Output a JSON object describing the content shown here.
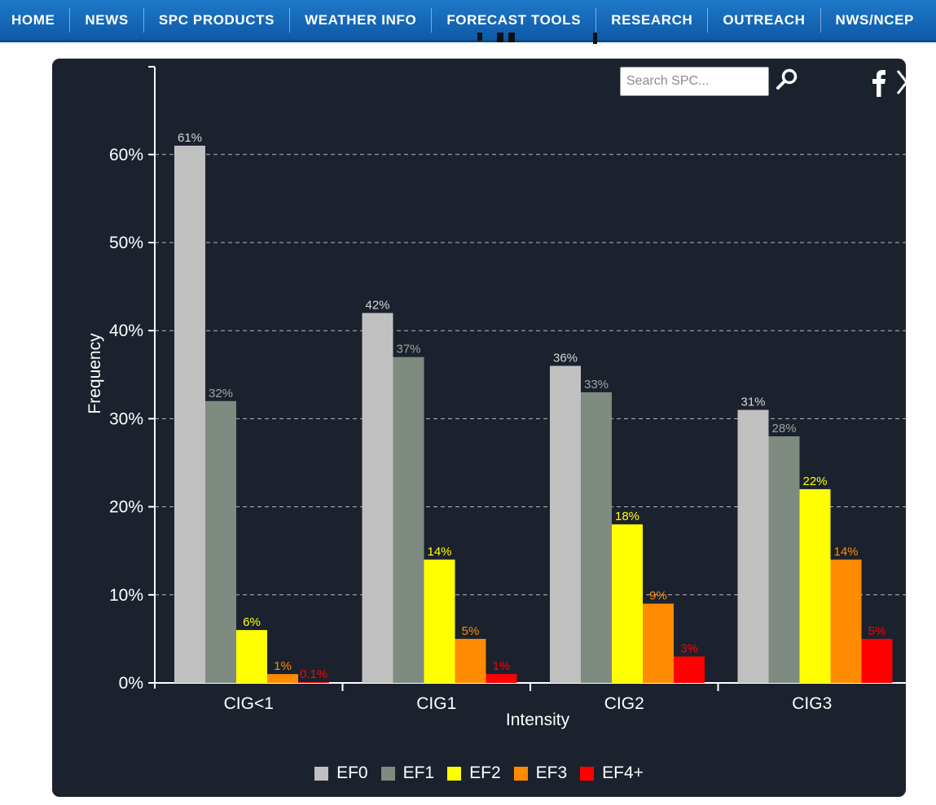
{
  "nav": {
    "items": [
      "HOME",
      "NEWS",
      "SPC PRODUCTS",
      "WEATHER INFO",
      "FORECAST TOOLS",
      "RESEARCH",
      "OUTREACH",
      "NWS/NCEP"
    ]
  },
  "search": {
    "placeholder": "Search SPC..."
  },
  "icons": {
    "search": "search-icon",
    "facebook": "facebook-icon",
    "x": "x-icon"
  },
  "colors": {
    "nav_bg": "#1565b8",
    "panel_bg": "#1b222e",
    "EF0": "#c0c0c0",
    "EF1": "#7f8a80",
    "EF2": "#ffff00",
    "EF3": "#ff8c00",
    "EF4+": "#ff0000"
  },
  "chart_data": {
    "type": "bar",
    "title": "",
    "xlabel": "Intensity",
    "ylabel": "Frequency",
    "ylim": [
      0,
      70
    ],
    "yticks": [
      0,
      10,
      20,
      30,
      40,
      50,
      60
    ],
    "ytick_labels": [
      "0%",
      "10%",
      "20%",
      "30%",
      "40%",
      "50%",
      "60%"
    ],
    "grid": true,
    "legend_position": "bottom-center",
    "categories": [
      "CIG<1",
      "CIG1",
      "CIG2",
      "CIG3"
    ],
    "series": [
      {
        "name": "EF0",
        "values": [
          61,
          42,
          36,
          31
        ],
        "labels": [
          "61%",
          "42%",
          "36%",
          "31%"
        ]
      },
      {
        "name": "EF1",
        "values": [
          32,
          37,
          33,
          28
        ],
        "labels": [
          "32%",
          "37%",
          "33%",
          "28%"
        ]
      },
      {
        "name": "EF2",
        "values": [
          6,
          14,
          18,
          22
        ],
        "labels": [
          "6%",
          "14%",
          "18%",
          "22%"
        ]
      },
      {
        "name": "EF3",
        "values": [
          1,
          5,
          9,
          14
        ],
        "labels": [
          "1%",
          "5%",
          "9%",
          "14%"
        ]
      },
      {
        "name": "EF4+",
        "values": [
          0.1,
          1,
          3,
          5
        ],
        "labels": [
          "0.1%",
          "1%",
          "3%",
          "5%"
        ]
      }
    ]
  }
}
